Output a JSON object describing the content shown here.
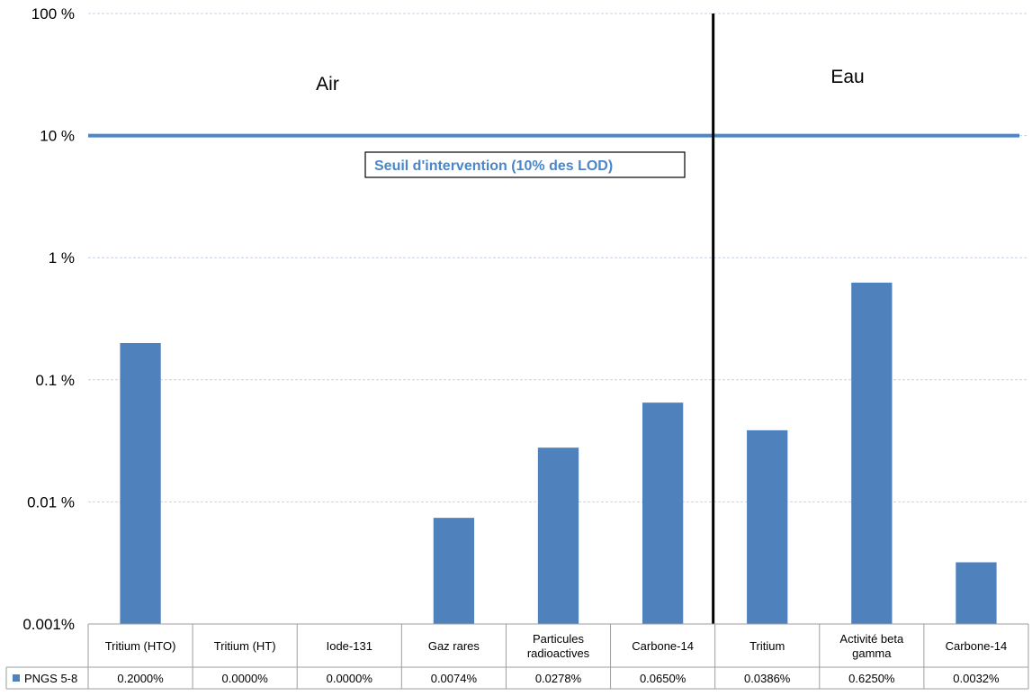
{
  "chart_data": {
    "type": "bar",
    "scale": "log",
    "ylim": [
      "0.001%",
      "100 %"
    ],
    "y_ticks": [
      "100 %",
      "10 %",
      "1 %",
      "0.1 %",
      "0.01 %",
      "0.001%"
    ],
    "y_tick_values": [
      100,
      10,
      1,
      0.1,
      0.01,
      0.001
    ],
    "categories": [
      [
        "Tritium (HTO)"
      ],
      [
        "Tritium (HT)"
      ],
      [
        "Iode-131"
      ],
      [
        "Gaz rares"
      ],
      [
        "Particules",
        "radioactives"
      ],
      [
        "Carbone-14"
      ],
      [
        "Tritium"
      ],
      [
        "Activité beta",
        "gamma"
      ],
      [
        "Carbone-14"
      ]
    ],
    "series": [
      {
        "name": "PNGS 5-8",
        "color": "#4f81bd",
        "values": [
          0.2,
          0.0,
          0.0,
          0.0074,
          0.0278,
          0.065,
          0.0386,
          0.625,
          0.0032
        ],
        "labels": [
          "0.2000%",
          "0.0000%",
          "0.0000%",
          "0.0074%",
          "0.0278%",
          "0.0650%",
          "0.0386%",
          "0.6250%",
          "0.0032%"
        ]
      }
    ],
    "regions": [
      {
        "label": "Air",
        "categories_count": 6
      },
      {
        "label": "Eau",
        "categories_count": 3
      }
    ],
    "threshold": {
      "value": 10,
      "label": "Seuil d'intervention (10% des LOD)",
      "color": "#4a86c8"
    },
    "grid": true,
    "data_table": true,
    "legend": "data-table-row"
  }
}
